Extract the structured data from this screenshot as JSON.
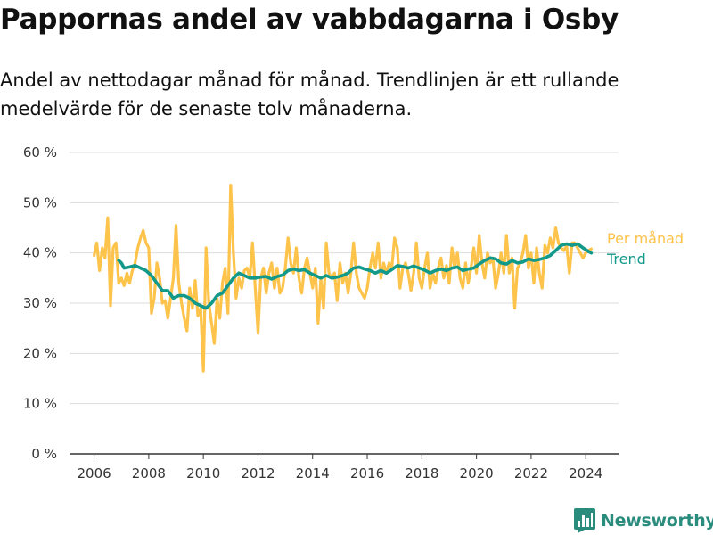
{
  "title": "Pappornas andel av vabbdagarna i Osby",
  "subtitle": "Andel av nettodagar månad för månad. Trendlinjen är ett rullande medelvärde för de senaste tolv månaderna.",
  "brand": {
    "name": "Newsworthy",
    "icon": "bar-chart-logo-icon",
    "color": "#2a8c7c"
  },
  "chart_data": {
    "type": "line",
    "title": "Pappornas andel av vabbdagarna i Osby",
    "subtitle": "Andel av nettodagar månad för månad. Trendlinjen är ett rullande medelvärde för de senaste tolv månaderna.",
    "xlabel": "",
    "ylabel": "",
    "xlim": [
      2005.1,
      2025.2
    ],
    "ylim": [
      0,
      60
    ],
    "x_ticks": [
      2006,
      2008,
      2010,
      2012,
      2014,
      2016,
      2018,
      2020,
      2022,
      2024
    ],
    "x_tick_labels": [
      "2006",
      "2008",
      "2010",
      "2012",
      "2014",
      "2016",
      "2018",
      "2020",
      "2022",
      "2024"
    ],
    "y_ticks": [
      0,
      10,
      20,
      30,
      40,
      50,
      60
    ],
    "y_tick_labels": [
      "0 %",
      "10 %",
      "20 %",
      "30 %",
      "40 %",
      "50 %",
      "60 %"
    ],
    "grid": "horizontal",
    "legend": "right",
    "series": [
      {
        "name": "Per månad",
        "color": "#fdc34b",
        "points": [
          [
            2006.0,
            39.5
          ],
          [
            2006.1,
            42.0
          ],
          [
            2006.2,
            36.5
          ],
          [
            2006.3,
            41.0
          ],
          [
            2006.4,
            39.0
          ],
          [
            2006.5,
            47.0
          ],
          [
            2006.6,
            29.5
          ],
          [
            2006.7,
            41.0
          ],
          [
            2006.8,
            42.0
          ],
          [
            2006.9,
            34.0
          ],
          [
            2007.0,
            35.0
          ],
          [
            2007.1,
            33.5
          ],
          [
            2007.2,
            36.0
          ],
          [
            2007.3,
            34.0
          ],
          [
            2007.4,
            36.5
          ],
          [
            2007.5,
            38.0
          ],
          [
            2007.6,
            41.0
          ],
          [
            2007.7,
            43.0
          ],
          [
            2007.8,
            44.5
          ],
          [
            2007.9,
            42.0
          ],
          [
            2008.0,
            41.0
          ],
          [
            2008.1,
            28.0
          ],
          [
            2008.2,
            31.0
          ],
          [
            2008.3,
            38.0
          ],
          [
            2008.4,
            35.0
          ],
          [
            2008.5,
            30.0
          ],
          [
            2008.6,
            30.5
          ],
          [
            2008.7,
            27.0
          ],
          [
            2008.8,
            31.0
          ],
          [
            2008.9,
            35.0
          ],
          [
            2009.0,
            45.5
          ],
          [
            2009.1,
            34.0
          ],
          [
            2009.2,
            30.0
          ],
          [
            2009.3,
            27.0
          ],
          [
            2009.4,
            24.5
          ],
          [
            2009.5,
            33.0
          ],
          [
            2009.6,
            29.0
          ],
          [
            2009.7,
            34.5
          ],
          [
            2009.8,
            27.5
          ],
          [
            2009.9,
            29.0
          ],
          [
            2010.0,
            16.5
          ],
          [
            2010.1,
            41.0
          ],
          [
            2010.2,
            30.0
          ],
          [
            2010.3,
            26.0
          ],
          [
            2010.4,
            22.0
          ],
          [
            2010.5,
            31.0
          ],
          [
            2010.6,
            27.0
          ],
          [
            2010.7,
            34.0
          ],
          [
            2010.8,
            37.0
          ],
          [
            2010.9,
            28.0
          ],
          [
            2011.0,
            53.5
          ],
          [
            2011.1,
            40.0
          ],
          [
            2011.2,
            31.0
          ],
          [
            2011.3,
            35.0
          ],
          [
            2011.4,
            33.0
          ],
          [
            2011.5,
            36.5
          ],
          [
            2011.6,
            37.0
          ],
          [
            2011.7,
            35.0
          ],
          [
            2011.8,
            42.0
          ],
          [
            2011.9,
            33.0
          ],
          [
            2012.0,
            24.0
          ],
          [
            2012.1,
            35.0
          ],
          [
            2012.2,
            37.0
          ],
          [
            2012.3,
            32.0
          ],
          [
            2012.4,
            36.0
          ],
          [
            2012.5,
            38.0
          ],
          [
            2012.6,
            33.0
          ],
          [
            2012.7,
            37.0
          ],
          [
            2012.8,
            32.0
          ],
          [
            2012.9,
            33.0
          ],
          [
            2013.0,
            37.0
          ],
          [
            2013.1,
            43.0
          ],
          [
            2013.2,
            38.0
          ],
          [
            2013.3,
            36.0
          ],
          [
            2013.4,
            41.0
          ],
          [
            2013.5,
            35.0
          ],
          [
            2013.6,
            32.0
          ],
          [
            2013.7,
            37.0
          ],
          [
            2013.8,
            39.0
          ],
          [
            2013.9,
            36.0
          ],
          [
            2014.0,
            33.0
          ],
          [
            2014.1,
            37.0
          ],
          [
            2014.2,
            26.0
          ],
          [
            2014.3,
            35.0
          ],
          [
            2014.4,
            29.0
          ],
          [
            2014.5,
            42.0
          ],
          [
            2014.6,
            36.0
          ],
          [
            2014.7,
            35.0
          ],
          [
            2014.8,
            36.0
          ],
          [
            2014.9,
            30.5
          ],
          [
            2015.0,
            38.0
          ],
          [
            2015.1,
            34.0
          ],
          [
            2015.2,
            36.0
          ],
          [
            2015.3,
            32.0
          ],
          [
            2015.4,
            36.0
          ],
          [
            2015.5,
            42.0
          ],
          [
            2015.6,
            36.0
          ],
          [
            2015.7,
            33.0
          ],
          [
            2015.8,
            32.0
          ],
          [
            2015.9,
            31.0
          ],
          [
            2016.0,
            33.0
          ],
          [
            2016.1,
            37.0
          ],
          [
            2016.2,
            40.0
          ],
          [
            2016.3,
            37.0
          ],
          [
            2016.4,
            42.0
          ],
          [
            2016.5,
            35.0
          ],
          [
            2016.6,
            38.0
          ],
          [
            2016.7,
            36.0
          ],
          [
            2016.8,
            38.0
          ],
          [
            2016.9,
            37.0
          ],
          [
            2017.0,
            43.0
          ],
          [
            2017.1,
            41.0
          ],
          [
            2017.2,
            33.0
          ],
          [
            2017.3,
            37.0
          ],
          [
            2017.4,
            38.0
          ],
          [
            2017.5,
            36.0
          ],
          [
            2017.6,
            32.5
          ],
          [
            2017.7,
            36.0
          ],
          [
            2017.8,
            42.0
          ],
          [
            2017.9,
            35.0
          ],
          [
            2018.0,
            33.0
          ],
          [
            2018.1,
            37.0
          ],
          [
            2018.2,
            40.0
          ],
          [
            2018.3,
            33.0
          ],
          [
            2018.4,
            36.0
          ],
          [
            2018.5,
            34.0
          ],
          [
            2018.6,
            37.0
          ],
          [
            2018.7,
            39.0
          ],
          [
            2018.8,
            35.0
          ],
          [
            2018.9,
            37.5
          ],
          [
            2019.0,
            34.0
          ],
          [
            2019.1,
            41.0
          ],
          [
            2019.2,
            37.0
          ],
          [
            2019.3,
            40.0
          ],
          [
            2019.4,
            35.0
          ],
          [
            2019.5,
            33.0
          ],
          [
            2019.6,
            38.0
          ],
          [
            2019.7,
            34.0
          ],
          [
            2019.8,
            37.0
          ],
          [
            2019.9,
            41.0
          ],
          [
            2020.0,
            36.0
          ],
          [
            2020.1,
            43.5
          ],
          [
            2020.2,
            38.0
          ],
          [
            2020.3,
            35.0
          ],
          [
            2020.4,
            40.0
          ],
          [
            2020.5,
            38.0
          ],
          [
            2020.6,
            39.0
          ],
          [
            2020.7,
            33.0
          ],
          [
            2020.8,
            36.0
          ],
          [
            2020.9,
            40.0
          ],
          [
            2021.0,
            36.0
          ],
          [
            2021.1,
            43.5
          ],
          [
            2021.2,
            36.0
          ],
          [
            2021.3,
            39.0
          ],
          [
            2021.4,
            29.0
          ],
          [
            2021.5,
            37.0
          ],
          [
            2021.6,
            38.0
          ],
          [
            2021.7,
            40.0
          ],
          [
            2021.8,
            43.5
          ],
          [
            2021.9,
            37.0
          ],
          [
            2022.0,
            40.0
          ],
          [
            2022.1,
            34.0
          ],
          [
            2022.2,
            41.0
          ],
          [
            2022.3,
            36.0
          ],
          [
            2022.4,
            33.0
          ],
          [
            2022.5,
            41.5
          ],
          [
            2022.6,
            40.0
          ],
          [
            2022.7,
            43.0
          ],
          [
            2022.8,
            41.0
          ],
          [
            2022.9,
            45.0
          ],
          [
            2023.0,
            42.0
          ],
          [
            2023.1,
            41.0
          ],
          [
            2023.2,
            40.5
          ],
          [
            2023.3,
            41.5
          ],
          [
            2023.4,
            36.0
          ],
          [
            2023.5,
            42.0
          ],
          [
            2023.6,
            42.0
          ],
          [
            2023.7,
            41.0
          ],
          [
            2023.8,
            40.0
          ],
          [
            2023.9,
            39.0
          ],
          [
            2024.0,
            40.0
          ],
          [
            2024.1,
            40.5
          ],
          [
            2024.2,
            40.8
          ]
        ]
      },
      {
        "name": "Trend",
        "color": "#13998a",
        "points": [
          [
            2006.9,
            38.5
          ],
          [
            2007.0,
            38.0
          ],
          [
            2007.1,
            37.0
          ],
          [
            2007.3,
            37.2
          ],
          [
            2007.5,
            37.5
          ],
          [
            2007.7,
            37.0
          ],
          [
            2007.9,
            36.5
          ],
          [
            2008.1,
            35.5
          ],
          [
            2008.3,
            34.0
          ],
          [
            2008.5,
            32.5
          ],
          [
            2008.7,
            32.5
          ],
          [
            2008.9,
            31.0
          ],
          [
            2009.1,
            31.5
          ],
          [
            2009.3,
            31.5
          ],
          [
            2009.5,
            31.0
          ],
          [
            2009.7,
            30.0
          ],
          [
            2009.9,
            29.5
          ],
          [
            2010.1,
            29.0
          ],
          [
            2010.3,
            30.0
          ],
          [
            2010.5,
            31.5
          ],
          [
            2010.7,
            32.0
          ],
          [
            2010.9,
            33.5
          ],
          [
            2011.1,
            35.0
          ],
          [
            2011.3,
            36.0
          ],
          [
            2011.5,
            35.5
          ],
          [
            2011.7,
            35.0
          ],
          [
            2011.9,
            35.0
          ],
          [
            2012.1,
            35.2
          ],
          [
            2012.3,
            35.3
          ],
          [
            2012.5,
            34.8
          ],
          [
            2012.7,
            35.3
          ],
          [
            2012.9,
            35.6
          ],
          [
            2013.1,
            36.5
          ],
          [
            2013.3,
            36.8
          ],
          [
            2013.5,
            36.5
          ],
          [
            2013.7,
            36.7
          ],
          [
            2013.9,
            36.0
          ],
          [
            2014.1,
            35.5
          ],
          [
            2014.3,
            35.0
          ],
          [
            2014.5,
            35.5
          ],
          [
            2014.7,
            35.0
          ],
          [
            2014.9,
            35.2
          ],
          [
            2015.1,
            35.5
          ],
          [
            2015.3,
            36.0
          ],
          [
            2015.5,
            37.0
          ],
          [
            2015.7,
            37.2
          ],
          [
            2015.9,
            36.8
          ],
          [
            2016.1,
            36.5
          ],
          [
            2016.3,
            36.0
          ],
          [
            2016.5,
            36.5
          ],
          [
            2016.7,
            36.0
          ],
          [
            2016.9,
            36.7
          ],
          [
            2017.1,
            37.5
          ],
          [
            2017.3,
            37.3
          ],
          [
            2017.5,
            37.0
          ],
          [
            2017.7,
            37.4
          ],
          [
            2017.9,
            37.0
          ],
          [
            2018.1,
            36.6
          ],
          [
            2018.3,
            36.0
          ],
          [
            2018.5,
            36.5
          ],
          [
            2018.7,
            36.8
          ],
          [
            2018.9,
            36.5
          ],
          [
            2019.1,
            37.0
          ],
          [
            2019.3,
            37.2
          ],
          [
            2019.5,
            36.5
          ],
          [
            2019.7,
            36.8
          ],
          [
            2019.9,
            37.0
          ],
          [
            2020.1,
            37.8
          ],
          [
            2020.3,
            38.5
          ],
          [
            2020.5,
            39.0
          ],
          [
            2020.7,
            38.8
          ],
          [
            2020.9,
            38.0
          ],
          [
            2021.1,
            37.8
          ],
          [
            2021.3,
            38.5
          ],
          [
            2021.5,
            38.0
          ],
          [
            2021.7,
            38.2
          ],
          [
            2021.9,
            38.8
          ],
          [
            2022.1,
            38.5
          ],
          [
            2022.3,
            38.7
          ],
          [
            2022.5,
            39.0
          ],
          [
            2022.7,
            39.5
          ],
          [
            2022.9,
            40.5
          ],
          [
            2023.1,
            41.5
          ],
          [
            2023.3,
            41.8
          ],
          [
            2023.5,
            41.5
          ],
          [
            2023.7,
            41.8
          ],
          [
            2023.9,
            41.0
          ],
          [
            2024.1,
            40.3
          ],
          [
            2024.2,
            40.0
          ]
        ]
      }
    ]
  }
}
